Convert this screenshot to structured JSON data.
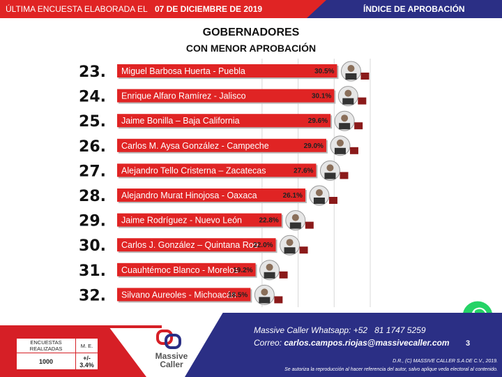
{
  "header": {
    "left_text": "ÚLTIMA ENCUESTA ELABORADA EL",
    "date": "07 DE DICIEMBRE DE 2019",
    "right_text": "ÍNDICE DE APROBACIÓN"
  },
  "title": {
    "line1": "GOBERNADORES",
    "line2": "CON MENOR APROBACIÓN"
  },
  "chart_data": {
    "type": "bar",
    "orientation": "horizontal",
    "title": "GOBERNADORES CON MENOR APROBACIÓN",
    "ranks": [
      "23.",
      "24.",
      "25.",
      "26.",
      "27.",
      "28.",
      "29.",
      "30.",
      "31.",
      "32."
    ],
    "categories": [
      "Miguel Barbosa Huerta - Puebla",
      "Enrique Alfaro Ramírez - Jalisco",
      "Jaime Bonilla – Baja California",
      "Carlos M. Aysa González - Campeche",
      "Alejandro Tello Cristerna – Zacatecas",
      "Alejandro Murat Hinojosa - Oaxaca",
      "Jaime Rodríguez - Nuevo León",
      "Carlos J. González – Quintana Roo",
      "Cuauhtémoc Blanco - Morelos",
      "Silvano Aureoles - Michoacán"
    ],
    "values": [
      30.5,
      30.1,
      29.6,
      29.0,
      27.6,
      26.1,
      22.8,
      22.0,
      19.2,
      18.5
    ],
    "value_labels": [
      "30.5%",
      "30.1%",
      "29.6%",
      "29.0%",
      "27.6%",
      "26.1%",
      "22.8%",
      "22.0%",
      "19.2%",
      "18.5%"
    ],
    "xlim": [
      0,
      35
    ],
    "bar_color": "#e02424",
    "grid": true
  },
  "stats": {
    "h1": "ENCUESTAS REALIZADAS",
    "h2": "M. E.",
    "v1": "1000",
    "v2": "+/- 3.4%"
  },
  "logo": {
    "line1": "Massive",
    "line2": "Caller"
  },
  "contact": {
    "whatsapp_label": "Massive Caller Whatsapp: +52",
    "whatsapp_number": "81 1747 5259",
    "email_label": "Correo:",
    "email": "carlos.campos.riojas@massivecaller.com"
  },
  "page_number": "3",
  "legal": {
    "line1": "D.R., (C) MASSIVE CALLER S.A DE C.V., 2019.",
    "line2": "Se autoriza la reproducción al hacer referencia del autor, salvo aplique veda electoral al contenido."
  },
  "colors": {
    "red": "#e02424",
    "navy": "#2b2f85",
    "whatsapp": "#25d366"
  }
}
